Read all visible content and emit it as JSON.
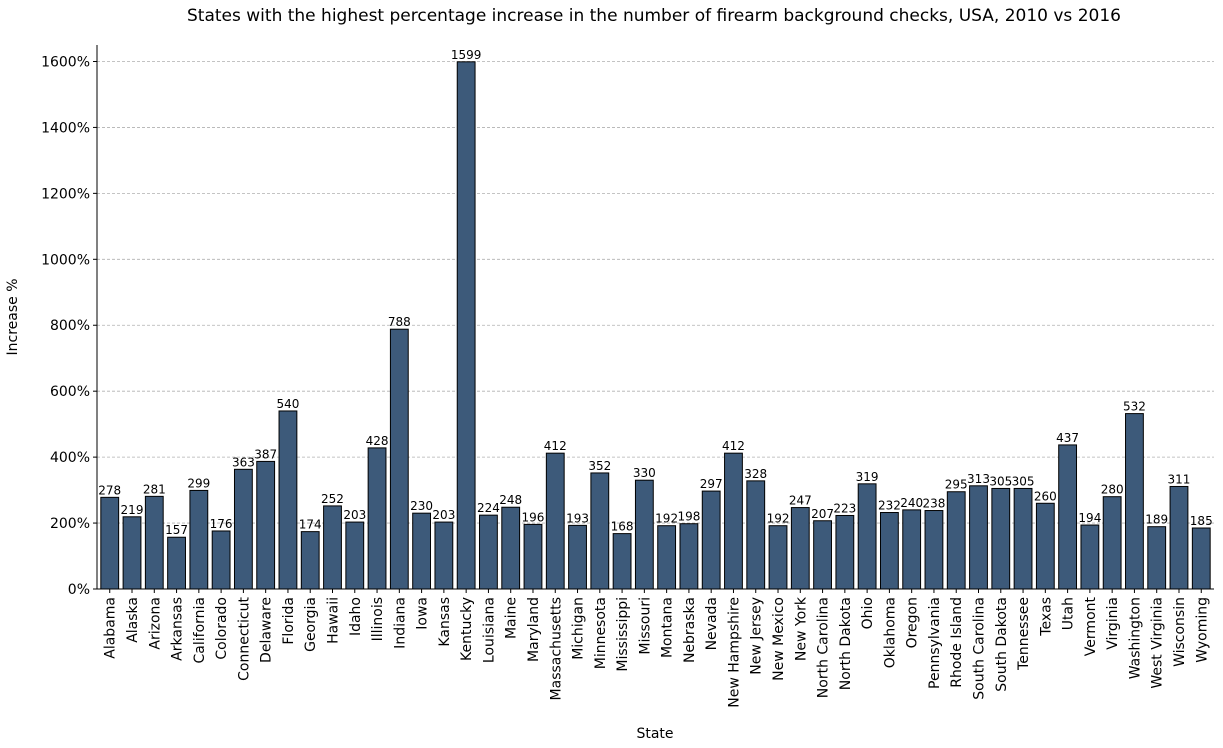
{
  "chart_data": {
    "type": "bar",
    "title": "States with the highest percentage increase in the number of firearm background checks, USA, 2010 vs 2016",
    "xlabel": "State",
    "ylabel": "Increase %",
    "ylim": [
      0,
      1650
    ],
    "yticks": [
      0,
      200,
      400,
      600,
      800,
      1000,
      1200,
      1400,
      1600
    ],
    "ytick_labels": [
      "0%",
      "200%",
      "400%",
      "600%",
      "800%",
      "1000%",
      "1200%",
      "1400%",
      "1600%"
    ],
    "grid": "y-dashed",
    "bar_color": "#3d5a7a",
    "categories": [
      "Alabama",
      "Alaska",
      "Arizona",
      "Arkansas",
      "California",
      "Colorado",
      "Connecticut",
      "Delaware",
      "Florida",
      "Georgia",
      "Hawaii",
      "Idaho",
      "Illinois",
      "Indiana",
      "Iowa",
      "Kansas",
      "Kentucky",
      "Louisiana",
      "Maine",
      "Maryland",
      "Massachusetts",
      "Michigan",
      "Minnesota",
      "Mississippi",
      "Missouri",
      "Montana",
      "Nebraska",
      "Nevada",
      "New Hampshire",
      "New Jersey",
      "New Mexico",
      "New York",
      "North Carolina",
      "North Dakota",
      "Ohio",
      "Oklahoma",
      "Oregon",
      "Pennsylvania",
      "Rhode Island",
      "South Carolina",
      "South Dakota",
      "Tennessee",
      "Texas",
      "Utah",
      "Vermont",
      "Virginia",
      "Washington",
      "West Virginia",
      "Wisconsin",
      "Wyoming"
    ],
    "values": [
      278,
      219,
      281,
      157,
      299,
      176,
      363,
      387,
      540,
      174,
      252,
      203,
      428,
      788,
      230,
      203,
      1599,
      224,
      248,
      196,
      412,
      193,
      352,
      168,
      330,
      192,
      198,
      297,
      412,
      328,
      192,
      247,
      207,
      223,
      319,
      232,
      240,
      238,
      295,
      313,
      305,
      305,
      260,
      437,
      194,
      280,
      532,
      189,
      311,
      185
    ],
    "data_labels": [
      "278",
      "219",
      "281",
      "157",
      "299",
      "176",
      "363",
      "387",
      "540",
      "174",
      "252",
      "203",
      "428",
      "788",
      "230",
      "203",
      "1599",
      "224",
      "248",
      "196",
      "412",
      "193",
      "352",
      "168",
      "330",
      "192",
      "198",
      "297",
      "412",
      "328",
      "192",
      "247",
      "207",
      "223",
      "319",
      "232",
      "240",
      "238",
      "295",
      "313",
      "305",
      "305",
      "260",
      "437",
      "194",
      "280",
      "532",
      "189",
      "311",
      "185"
    ]
  }
}
